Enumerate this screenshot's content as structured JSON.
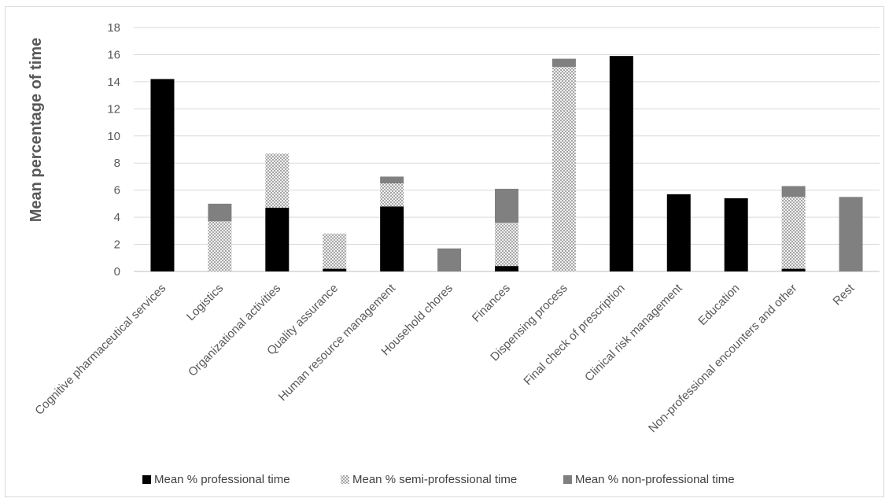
{
  "chart_data": {
    "type": "bar",
    "stacked": true,
    "ylabel": "Mean percentage of time",
    "xlabel": "",
    "ylim": [
      0,
      18
    ],
    "yticks": [
      0,
      2,
      4,
      6,
      8,
      10,
      12,
      14,
      16,
      18
    ],
    "grid": true,
    "legend_position": "bottom",
    "categories": [
      "Cognitive pharmaceutical services",
      "Logistics",
      "Organizational activities",
      "Quality assurance",
      "Human resource management",
      "Household chores",
      "Finances",
      "Dispensing process",
      "Final check of prescription",
      "Clinical risk management",
      "Education",
      "Non-professional encounters and other",
      "Rest"
    ],
    "series": [
      {
        "name": "Mean % professional time",
        "color": "#000000",
        "pattern": "solid",
        "values": [
          14.2,
          0,
          4.7,
          0.2,
          4.8,
          0,
          0.4,
          0,
          15.9,
          5.7,
          5.4,
          0.2,
          0
        ]
      },
      {
        "name": "Mean % semi-professional time",
        "color": "#bfbfbf",
        "pattern": "checkered",
        "values": [
          0,
          3.7,
          4.0,
          2.6,
          1.7,
          0,
          3.2,
          15.1,
          0,
          0,
          0,
          5.3,
          0
        ]
      },
      {
        "name": "Mean % non-professional time",
        "color": "#808080",
        "pattern": "solid",
        "values": [
          0,
          1.3,
          0,
          0,
          0.5,
          1.7,
          2.5,
          0.6,
          0,
          0,
          0,
          0.8,
          5.5
        ]
      }
    ]
  }
}
